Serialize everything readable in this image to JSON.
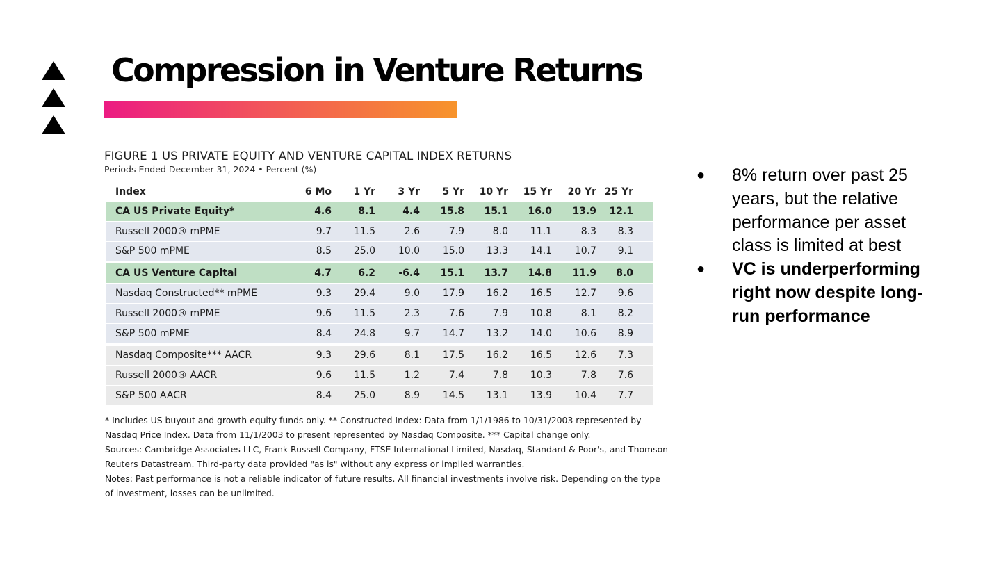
{
  "slide": {
    "title": "Compression in Venture Returns"
  },
  "figure": {
    "title": "FIGURE 1  US PRIVATE EQUITY AND VENTURE CAPITAL INDEX RETURNS",
    "subtitle": "Periods Ended December 31, 2024 • Percent (%)",
    "columns": [
      "Index",
      "6 Mo",
      "1 Yr",
      "3 Yr",
      "5 Yr",
      "10 Yr",
      "15 Yr",
      "20 Yr",
      "25 Yr"
    ],
    "rows": [
      {
        "label": "CA US Private Equity*",
        "values": [
          "4.6",
          "8.1",
          "4.4",
          "15.8",
          "15.1",
          "16.0",
          "13.9",
          "12.1"
        ]
      },
      {
        "label": "Russell 2000® mPME",
        "values": [
          "9.7",
          "11.5",
          "2.6",
          "7.9",
          "8.0",
          "11.1",
          "8.3",
          "8.3"
        ]
      },
      {
        "label": "S&P 500 mPME",
        "values": [
          "8.5",
          "25.0",
          "10.0",
          "15.0",
          "13.3",
          "14.1",
          "10.7",
          "9.1"
        ]
      },
      {
        "label": "CA US Venture Capital",
        "values": [
          "4.7",
          "6.2",
          "-6.4",
          "15.1",
          "13.7",
          "14.8",
          "11.9",
          "8.0"
        ]
      },
      {
        "label": "Nasdaq Constructed** mPME",
        "values": [
          "9.3",
          "29.4",
          "9.0",
          "17.9",
          "16.2",
          "16.5",
          "12.7",
          "9.6"
        ]
      },
      {
        "label": "Russell 2000® mPME",
        "values": [
          "9.6",
          "11.5",
          "2.3",
          "7.6",
          "7.9",
          "10.8",
          "8.1",
          "8.2"
        ]
      },
      {
        "label": "S&P 500 mPME",
        "values": [
          "8.4",
          "24.8",
          "9.7",
          "14.7",
          "13.2",
          "14.0",
          "10.6",
          "8.9"
        ]
      },
      {
        "label": "Nasdaq Composite*** AACR",
        "values": [
          "9.3",
          "29.6",
          "8.1",
          "17.5",
          "16.2",
          "16.5",
          "12.6",
          "7.3"
        ]
      },
      {
        "label": "Russell 2000® AACR",
        "values": [
          "9.6",
          "11.5",
          "1.2",
          "7.4",
          "7.8",
          "10.3",
          "7.8",
          "7.6"
        ]
      },
      {
        "label": "S&P 500 AACR",
        "values": [
          "8.4",
          "25.0",
          "8.9",
          "14.5",
          "13.1",
          "13.9",
          "10.4",
          "7.7"
        ]
      }
    ],
    "notes": {
      "footnote": "* Includes US buyout and growth equity funds only. ** Constructed Index: Data from 1/1/1986 to 10/31/2003 represented by Nasdaq Price Index. Data from 11/1/2003 to present represented by Nasdaq Composite. *** Capital change only.",
      "sources": "Sources: Cambridge Associates LLC, Frank Russell Company, FTSE International Limited, Nasdaq, Standard & Poor's, and Thomson Reuters Datastream. Third-party data provided \"as is\" without any express or implied warranties.",
      "disclaimer": "Notes: Past performance is not a reliable indicator of future results. All financial investments involve risk. Depending on the type of investment, losses can be unlimited."
    }
  },
  "bullets": [
    {
      "text": "8% return over past 25 years, but the relative performance per asset class is limited at best",
      "bold": false
    },
    {
      "text": "VC is underperforming right now despite long-run performance",
      "bold": true
    }
  ],
  "colors": {
    "accent_start": "#ec1b82",
    "accent_end": "#f7942b",
    "pe_row": "#bfdfc4",
    "blue_row": "#e3e7ef",
    "gray_row": "#eaeaea"
  }
}
